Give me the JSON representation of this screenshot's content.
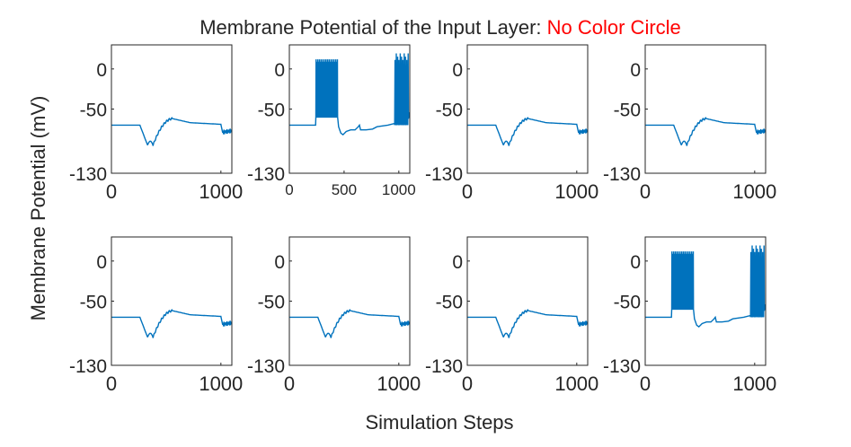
{
  "figure": {
    "title_main": "Membrane Potential of the Input Layer: ",
    "title_highlight": "No Color Circle",
    "title_highlight_color": "#ff0000",
    "ylabel": "Membrane Potential (mV)",
    "xlabel": "Simulation Steps",
    "line_color": "#0072bd"
  },
  "chart_data": [
    {
      "type": "line",
      "row": 1,
      "col": 1,
      "pattern": "hyperpolarized",
      "xlim": [
        0,
        1100
      ],
      "ylim": [
        -130,
        30
      ],
      "yticks": [
        -130,
        -50,
        0
      ],
      "xticks": [
        0,
        1000
      ],
      "xtick_labels": [
        "0",
        "1000"
      ]
    },
    {
      "type": "line",
      "row": 1,
      "col": 2,
      "pattern": "spiking",
      "xlim": [
        0,
        1100
      ],
      "ylim": [
        -130,
        30
      ],
      "yticks": [
        -130,
        -50,
        0
      ],
      "xticks": [
        0,
        500,
        1000
      ],
      "xtick_labels": [
        "0",
        "500",
        "1000"
      ]
    },
    {
      "type": "line",
      "row": 1,
      "col": 3,
      "pattern": "hyperpolarized",
      "xlim": [
        0,
        1100
      ],
      "ylim": [
        -130,
        30
      ],
      "yticks": [
        -130,
        -50,
        0
      ],
      "xticks": [
        0,
        1000
      ],
      "xtick_labels": [
        "0",
        "1000"
      ]
    },
    {
      "type": "line",
      "row": 1,
      "col": 4,
      "pattern": "hyperpolarized",
      "xlim": [
        0,
        1100
      ],
      "ylim": [
        -130,
        30
      ],
      "yticks": [
        -130,
        -50,
        0
      ],
      "xticks": [
        0,
        1000
      ],
      "xtick_labels": [
        "0",
        "1000"
      ]
    },
    {
      "type": "line",
      "row": 2,
      "col": 1,
      "pattern": "hyperpolarized",
      "xlim": [
        0,
        1100
      ],
      "ylim": [
        -130,
        30
      ],
      "yticks": [
        -130,
        -50,
        0
      ],
      "xticks": [
        0,
        1000
      ],
      "xtick_labels": [
        "0",
        "1000"
      ]
    },
    {
      "type": "line",
      "row": 2,
      "col": 2,
      "pattern": "hyperpolarized",
      "xlim": [
        0,
        1100
      ],
      "ylim": [
        -130,
        30
      ],
      "yticks": [
        -130,
        -50,
        0
      ],
      "xticks": [
        0,
        1000
      ],
      "xtick_labels": [
        "0",
        "1000"
      ]
    },
    {
      "type": "line",
      "row": 2,
      "col": 3,
      "pattern": "hyperpolarized",
      "xlim": [
        0,
        1100
      ],
      "ylim": [
        -130,
        30
      ],
      "yticks": [
        -130,
        -50,
        0
      ],
      "xticks": [
        0,
        1000
      ],
      "xtick_labels": [
        "0",
        "1000"
      ]
    },
    {
      "type": "line",
      "row": 2,
      "col": 4,
      "pattern": "spiking",
      "xlim": [
        0,
        1100
      ],
      "ylim": [
        -130,
        30
      ],
      "yticks": [
        -130,
        -50,
        0
      ],
      "xticks": [
        0,
        1000
      ],
      "xtick_labels": [
        "0",
        "1000"
      ]
    }
  ]
}
